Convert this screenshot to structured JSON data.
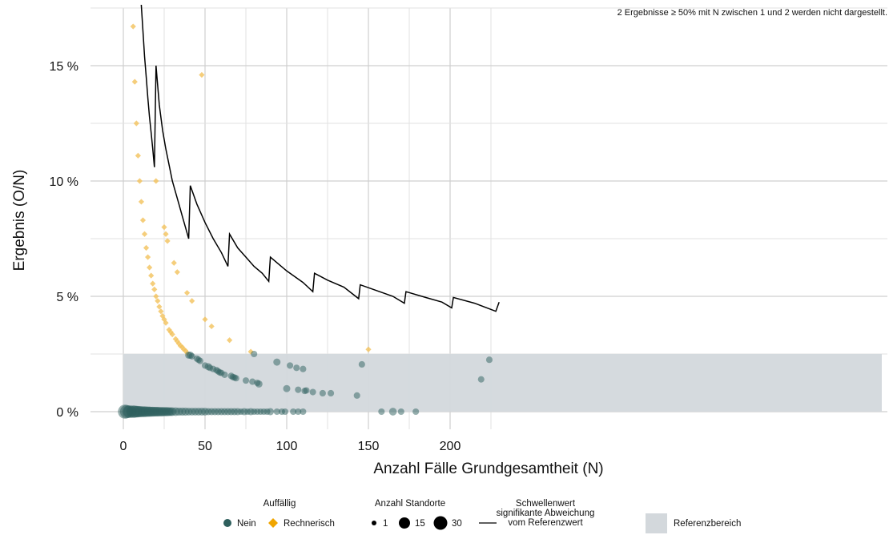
{
  "colors": {
    "nein": "#2e5f5d",
    "rechnerisch": "#f3c25b",
    "threshold": "#000000",
    "reference": "#d3d8dc",
    "grid": "#cfcfcf"
  },
  "chart_data": {
    "type": "scatter",
    "title": "",
    "xlabel": "Anzahl Fälle Grundgesamtheit (N)",
    "ylabel": "Ergebnis (O/N)",
    "xlim": [
      -3,
      233
    ],
    "ylim": [
      0,
      17.5
    ],
    "x_ticks": [
      0,
      50,
      100,
      150,
      200
    ],
    "x_tick_labels": [
      "0",
      "50",
      "100",
      "150",
      "200"
    ],
    "y_ticks": [
      0,
      5,
      10,
      15
    ],
    "y_tick_labels": [
      "0 %",
      "5 %",
      "10 %",
      "15 %"
    ],
    "grid": true,
    "note": "2 Ergebnisse ≥ 50% mit N zwischen 1 und 2 werden nicht dargestellt.",
    "reference_range": {
      "label": "Referenzbereich",
      "ymin": 0,
      "ymax": 2.5
    },
    "threshold_line": {
      "label": "Schwellenwert signifikante Abweichung vom Referenzwert",
      "label_lines": [
        "Schwellenwert",
        "signifikante Abweichung",
        "vom Referenzwert"
      ],
      "points": [
        [
          11,
          17.8
        ],
        [
          12,
          16.5
        ],
        [
          13,
          15.4
        ],
        [
          14,
          14.5
        ],
        [
          15,
          13.6
        ],
        [
          16,
          12.8
        ],
        [
          17,
          12.1
        ],
        [
          18,
          11.4
        ],
        [
          19,
          10.6
        ],
        [
          20,
          15.0
        ],
        [
          22,
          13.3
        ],
        [
          24,
          12.2
        ],
        [
          26,
          11.4
        ],
        [
          28,
          10.7
        ],
        [
          30,
          10.0
        ],
        [
          32,
          9.5
        ],
        [
          34,
          9.0
        ],
        [
          36,
          8.5
        ],
        [
          38,
          8.0
        ],
        [
          40,
          7.5
        ],
        [
          41,
          9.8
        ],
        [
          45,
          9.0
        ],
        [
          50,
          8.2
        ],
        [
          55,
          7.5
        ],
        [
          60,
          6.9
        ],
        [
          64,
          6.3
        ],
        [
          65,
          7.7
        ],
        [
          70,
          7.1
        ],
        [
          75,
          6.7
        ],
        [
          80,
          6.3
        ],
        [
          85,
          6.0
        ],
        [
          89,
          5.65
        ],
        [
          90,
          6.7
        ],
        [
          95,
          6.4
        ],
        [
          100,
          6.1
        ],
        [
          105,
          5.85
        ],
        [
          110,
          5.6
        ],
        [
          116,
          5.2
        ],
        [
          117,
          6.0
        ],
        [
          125,
          5.7
        ],
        [
          135,
          5.4
        ],
        [
          144,
          4.9
        ],
        [
          145,
          5.5
        ],
        [
          155,
          5.25
        ],
        [
          165,
          5.0
        ],
        [
          172,
          4.7
        ],
        [
          173,
          5.2
        ],
        [
          185,
          4.95
        ],
        [
          195,
          4.75
        ],
        [
          201,
          4.5
        ],
        [
          202,
          4.95
        ],
        [
          215,
          4.7
        ],
        [
          228,
          4.35
        ],
        [
          230,
          4.75
        ]
      ]
    },
    "legend": {
      "auffaellig": {
        "title": "Auffällig",
        "items": [
          "Nein",
          "Rechnerisch"
        ]
      },
      "standorte": {
        "title": "Anzahl Standorte",
        "items": [
          "1",
          "15",
          "30"
        ]
      },
      "referenz": "Referenzbereich"
    },
    "series": [
      {
        "name": "Rechnerisch",
        "marker": "diamond",
        "points": [
          [
            6,
            16.7
          ],
          [
            7,
            14.3
          ],
          [
            8,
            12.5
          ],
          [
            9,
            11.1
          ],
          [
            10,
            10.0
          ],
          [
            11,
            9.1
          ],
          [
            12,
            8.3
          ],
          [
            13,
            7.7
          ],
          [
            14,
            7.1
          ],
          [
            15,
            6.7
          ],
          [
            16,
            6.25
          ],
          [
            17,
            5.9
          ],
          [
            18,
            5.55
          ],
          [
            19,
            5.3
          ],
          [
            20,
            10.0
          ],
          [
            20,
            5.0
          ],
          [
            21,
            4.8
          ],
          [
            22,
            4.55
          ],
          [
            23,
            4.35
          ],
          [
            24,
            4.15
          ],
          [
            25,
            4.0
          ],
          [
            25,
            8.0
          ],
          [
            26,
            3.85
          ],
          [
            26,
            7.7
          ],
          [
            27,
            7.4
          ],
          [
            28,
            3.55
          ],
          [
            29,
            3.45
          ],
          [
            30,
            3.35
          ],
          [
            31,
            6.45
          ],
          [
            32,
            3.15
          ],
          [
            33,
            3.05
          ],
          [
            33,
            6.05
          ],
          [
            34,
            2.95
          ],
          [
            35,
            2.85
          ],
          [
            36,
            2.8
          ],
          [
            37,
            2.7
          ],
          [
            38,
            2.65
          ],
          [
            39,
            2.55
          ],
          [
            39,
            5.15
          ],
          [
            42,
            4.8
          ],
          [
            48,
            14.6
          ],
          [
            50,
            4.0
          ],
          [
            54,
            3.7
          ],
          [
            65,
            3.1
          ],
          [
            78,
            2.6
          ],
          [
            150,
            2.7
          ]
        ]
      },
      {
        "name": "Nein",
        "marker": "circle",
        "points": [
          [
            1,
            0,
            30
          ],
          [
            2,
            0,
            25
          ],
          [
            3,
            0,
            18
          ],
          [
            4,
            0,
            22
          ],
          [
            5,
            0,
            12
          ],
          [
            6,
            0,
            20
          ],
          [
            7,
            0,
            18
          ],
          [
            8,
            0,
            16
          ],
          [
            9,
            0,
            15
          ],
          [
            10,
            0,
            14
          ],
          [
            11,
            0,
            13
          ],
          [
            12,
            0,
            12
          ],
          [
            13,
            0,
            12
          ],
          [
            14,
            0,
            11
          ],
          [
            15,
            0,
            10
          ],
          [
            16,
            0,
            10
          ],
          [
            17,
            0,
            9
          ],
          [
            18,
            0,
            9
          ],
          [
            19,
            0,
            8
          ],
          [
            20,
            0,
            8
          ],
          [
            21,
            0,
            8
          ],
          [
            22,
            0,
            7
          ],
          [
            23,
            0,
            7
          ],
          [
            24,
            0,
            7
          ],
          [
            25,
            0,
            6
          ],
          [
            26,
            0,
            6
          ],
          [
            27,
            0,
            6
          ],
          [
            28,
            0,
            5
          ],
          [
            29,
            0,
            5
          ],
          [
            30,
            0,
            5
          ],
          [
            32,
            0,
            5
          ],
          [
            34,
            0,
            4
          ],
          [
            36,
            0,
            4
          ],
          [
            38,
            0,
            4
          ],
          [
            40,
            0,
            3
          ],
          [
            42,
            0,
            3
          ],
          [
            44,
            0,
            3
          ],
          [
            46,
            0,
            3
          ],
          [
            48,
            0,
            3
          ],
          [
            50,
            0,
            3
          ],
          [
            52,
            0,
            2
          ],
          [
            54,
            0,
            2
          ],
          [
            56,
            0,
            2
          ],
          [
            58,
            0,
            2
          ],
          [
            60,
            0,
            2
          ],
          [
            62,
            0,
            2
          ],
          [
            64,
            0,
            2
          ],
          [
            66,
            0,
            2
          ],
          [
            68,
            0,
            2
          ],
          [
            70,
            0,
            2
          ],
          [
            72,
            0,
            1
          ],
          [
            74,
            0,
            2
          ],
          [
            76,
            0,
            1
          ],
          [
            78,
            0,
            2
          ],
          [
            80,
            0,
            1
          ],
          [
            82,
            0,
            1
          ],
          [
            84,
            0,
            1
          ],
          [
            86,
            0,
            1
          ],
          [
            88,
            0,
            1
          ],
          [
            90,
            0,
            2
          ],
          [
            94,
            0,
            1
          ],
          [
            97,
            0,
            1
          ],
          [
            99,
            0,
            1
          ],
          [
            104,
            0,
            1
          ],
          [
            107,
            0,
            1
          ],
          [
            110,
            0,
            1
          ],
          [
            158,
            0,
            1
          ],
          [
            165,
            0,
            3
          ],
          [
            170,
            0,
            1
          ],
          [
            179,
            0,
            1
          ],
          [
            40,
            2.45,
            2
          ],
          [
            41,
            2.45,
            2
          ],
          [
            42,
            2.4,
            1
          ],
          [
            45,
            2.3,
            1
          ],
          [
            46,
            2.25,
            1
          ],
          [
            47,
            2.2,
            1
          ],
          [
            50,
            2.0,
            1
          ],
          [
            52,
            1.95,
            2
          ],
          [
            53,
            1.9,
            1
          ],
          [
            55,
            1.85,
            1
          ],
          [
            57,
            1.8,
            1
          ],
          [
            58,
            1.75,
            1
          ],
          [
            59,
            1.7,
            1
          ],
          [
            60,
            1.68,
            1
          ],
          [
            62,
            1.6,
            1
          ],
          [
            66,
            1.55,
            1
          ],
          [
            67,
            1.5,
            1
          ],
          [
            68,
            1.48,
            1
          ],
          [
            69,
            1.45,
            1
          ],
          [
            75,
            1.35,
            1
          ],
          [
            79,
            1.3,
            1
          ],
          [
            82,
            1.25,
            1
          ],
          [
            83,
            1.2,
            2
          ],
          [
            80,
            2.5,
            1
          ],
          [
            94,
            2.15,
            2
          ],
          [
            100,
            1.0,
            2
          ],
          [
            102,
            2.0,
            1
          ],
          [
            106,
            1.9,
            1
          ],
          [
            107,
            0.95,
            1
          ],
          [
            110,
            1.85,
            1
          ],
          [
            111,
            0.9,
            1
          ],
          [
            112,
            0.92,
            1
          ],
          [
            116,
            0.85,
            1
          ],
          [
            122,
            0.8,
            1
          ],
          [
            127,
            0.8,
            1
          ],
          [
            143,
            0.7,
            1
          ],
          [
            146,
            2.05,
            1
          ],
          [
            219,
            1.4,
            1
          ],
          [
            224,
            2.25,
            1
          ]
        ]
      }
    ]
  }
}
